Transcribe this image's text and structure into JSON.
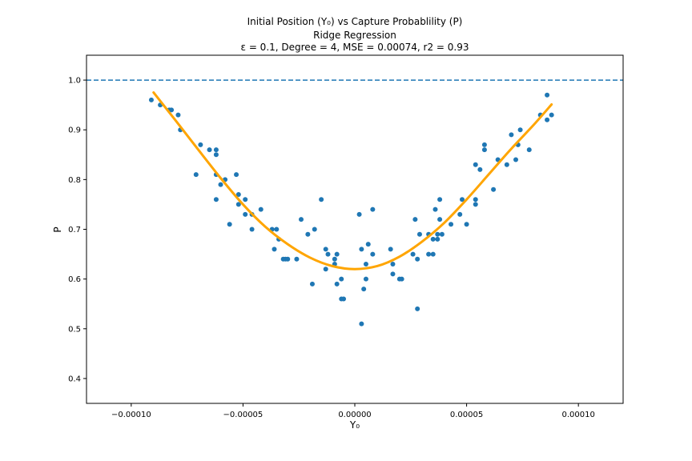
{
  "chart_data": {
    "type": "scatter",
    "title_lines": [
      "Initial Position (Y₀) vs Capture Probablility (P)",
      "Ridge Regression",
      "ε = 0.1, Degree = 4, MSE = 0.00074, r2 = 0.93"
    ],
    "xlabel": "Y₀",
    "ylabel": "P",
    "xlim": [
      -0.00012,
      0.00012
    ],
    "ylim": [
      0.35,
      1.05
    ],
    "xticks": [
      -0.0001,
      -5e-05,
      0.0,
      5e-05,
      0.0001
    ],
    "xtick_labels": [
      "−0.00010",
      "−0.00005",
      "0.00000",
      "0.00005",
      "0.00010"
    ],
    "yticks": [
      0.4,
      0.5,
      0.6,
      0.7,
      0.8,
      0.9,
      1.0
    ],
    "ytick_labels": [
      "0.4",
      "0.5",
      "0.6",
      "0.7",
      "0.8",
      "0.9",
      "1.0"
    ],
    "grid": false,
    "reference_line": {
      "y": 1.0,
      "style": "dashed",
      "color": "#1f77b4"
    },
    "scatter_color": "#1f77b4",
    "fit_color": "#ffa500",
    "points": [
      [
        -9.1e-05,
        0.96
      ],
      [
        -8.7e-05,
        0.95
      ],
      [
        -8.3e-05,
        0.94
      ],
      [
        -8.2e-05,
        0.94
      ],
      [
        -7.9e-05,
        0.93
      ],
      [
        -7.8e-05,
        0.9
      ],
      [
        -7.1e-05,
        0.81
      ],
      [
        -6.9e-05,
        0.87
      ],
      [
        -6.5e-05,
        0.86
      ],
      [
        -6.2e-05,
        0.86
      ],
      [
        -6.2e-05,
        0.85
      ],
      [
        -6.2e-05,
        0.81
      ],
      [
        -6.2e-05,
        0.76
      ],
      [
        -6e-05,
        0.79
      ],
      [
        -5.8e-05,
        0.8
      ],
      [
        -5.6e-05,
        0.71
      ],
      [
        -5.3e-05,
        0.81
      ],
      [
        -5.2e-05,
        0.77
      ],
      [
        -5.2e-05,
        0.75
      ],
      [
        -4.9e-05,
        0.73
      ],
      [
        -4.9e-05,
        0.76
      ],
      [
        -4.6e-05,
        0.7
      ],
      [
        -4.6e-05,
        0.73
      ],
      [
        -4.2e-05,
        0.74
      ],
      [
        -3.7e-05,
        0.7
      ],
      [
        -3.6e-05,
        0.66
      ],
      [
        -3.5e-05,
        0.7
      ],
      [
        -3.4e-05,
        0.68
      ],
      [
        -3.2e-05,
        0.64
      ],
      [
        -3.1e-05,
        0.64
      ],
      [
        -3e-05,
        0.64
      ],
      [
        -2.6e-05,
        0.64
      ],
      [
        -2.4e-05,
        0.72
      ],
      [
        -2.1e-05,
        0.69
      ],
      [
        -1.9e-05,
        0.59
      ],
      [
        -1.8e-05,
        0.7
      ],
      [
        -1.5e-05,
        0.76
      ],
      [
        -1.3e-05,
        0.66
      ],
      [
        -1.3e-05,
        0.62
      ],
      [
        -1.2e-05,
        0.65
      ],
      [
        -9e-06,
        0.63
      ],
      [
        -9e-06,
        0.64
      ],
      [
        -8e-06,
        0.65
      ],
      [
        -8e-06,
        0.59
      ],
      [
        -6e-06,
        0.6
      ],
      [
        -6e-06,
        0.56
      ],
      [
        -5e-06,
        0.56
      ],
      [
        2e-06,
        0.73
      ],
      [
        3e-06,
        0.66
      ],
      [
        3e-06,
        0.51
      ],
      [
        4e-06,
        0.58
      ],
      [
        5e-06,
        0.6
      ],
      [
        5e-06,
        0.63
      ],
      [
        6e-06,
        0.67
      ],
      [
        8e-06,
        0.65
      ],
      [
        8e-06,
        0.74
      ],
      [
        1.6e-05,
        0.66
      ],
      [
        1.7e-05,
        0.63
      ],
      [
        1.7e-05,
        0.61
      ],
      [
        2e-05,
        0.6
      ],
      [
        2.1e-05,
        0.6
      ],
      [
        2.6e-05,
        0.65
      ],
      [
        2.7e-05,
        0.72
      ],
      [
        2.8e-05,
        0.64
      ],
      [
        2.8e-05,
        0.54
      ],
      [
        2.9e-05,
        0.69
      ],
      [
        3.3e-05,
        0.69
      ],
      [
        3.3e-05,
        0.65
      ],
      [
        3.5e-05,
        0.65
      ],
      [
        3.5e-05,
        0.68
      ],
      [
        3.6e-05,
        0.74
      ],
      [
        3.7e-05,
        0.69
      ],
      [
        3.7e-05,
        0.68
      ],
      [
        3.8e-05,
        0.72
      ],
      [
        3.8e-05,
        0.76
      ],
      [
        3.9e-05,
        0.69
      ],
      [
        4.3e-05,
        0.71
      ],
      [
        4.7e-05,
        0.73
      ],
      [
        4.8e-05,
        0.76
      ],
      [
        5e-05,
        0.71
      ],
      [
        5.4e-05,
        0.83
      ],
      [
        5.4e-05,
        0.75
      ],
      [
        5.4e-05,
        0.76
      ],
      [
        5.6e-05,
        0.82
      ],
      [
        5.8e-05,
        0.87
      ],
      [
        5.8e-05,
        0.86
      ],
      [
        6.2e-05,
        0.78
      ],
      [
        6.4e-05,
        0.84
      ],
      [
        6.8e-05,
        0.83
      ],
      [
        7e-05,
        0.89
      ],
      [
        7.2e-05,
        0.84
      ],
      [
        7.3e-05,
        0.87
      ],
      [
        7.4e-05,
        0.9
      ],
      [
        7.8e-05,
        0.86
      ],
      [
        8.3e-05,
        0.93
      ],
      [
        8.6e-05,
        0.97
      ],
      [
        8.6e-05,
        0.92
      ],
      [
        8.8e-05,
        0.93
      ]
    ],
    "fit_curve": {
      "x": [
        -9e-05,
        -8e-05,
        -7e-05,
        -6e-05,
        -5e-05,
        -4e-05,
        -3e-05,
        -2e-05,
        -1e-05,
        0.0,
        1e-05,
        2e-05,
        3e-05,
        4e-05,
        5e-05,
        6e-05,
        7e-05,
        8e-05,
        8.8e-05
      ],
      "y": [
        0.975,
        0.918,
        0.86,
        0.803,
        0.75,
        0.705,
        0.67,
        0.643,
        0.626,
        0.62,
        0.626,
        0.645,
        0.675,
        0.713,
        0.76,
        0.811,
        0.862,
        0.91,
        0.951
      ]
    }
  }
}
